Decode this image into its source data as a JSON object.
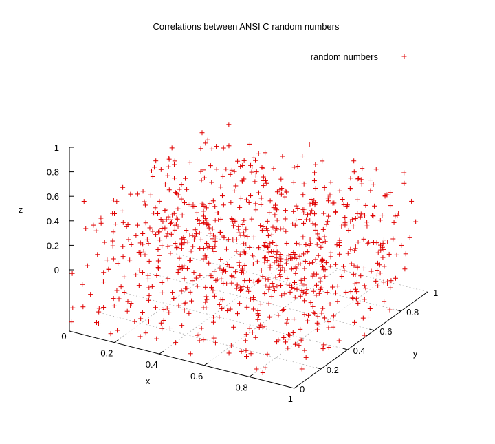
{
  "chart_data": {
    "type": "scatter",
    "title": "Correlations between ANSI C random numbers",
    "xlabel": "x",
    "ylabel": "y",
    "zlabel": "z",
    "xlim": [
      0,
      1
    ],
    "ylim": [
      0,
      1
    ],
    "zlim": [
      0,
      1
    ],
    "x_ticks": [
      "0",
      "0.2",
      "0.4",
      "0.6",
      "0.8",
      "1"
    ],
    "y_ticks": [
      "0",
      "0.2",
      "0.4",
      "0.6",
      "0.8",
      "1"
    ],
    "z_ticks": [
      "0",
      "0.2",
      "0.4",
      "0.6",
      "0.8",
      "1"
    ],
    "grid": true,
    "legend_position": "top-right",
    "series": [
      {
        "name": "random numbers",
        "color": "#e00000",
        "marker": "plus",
        "count": 900
      }
    ]
  }
}
